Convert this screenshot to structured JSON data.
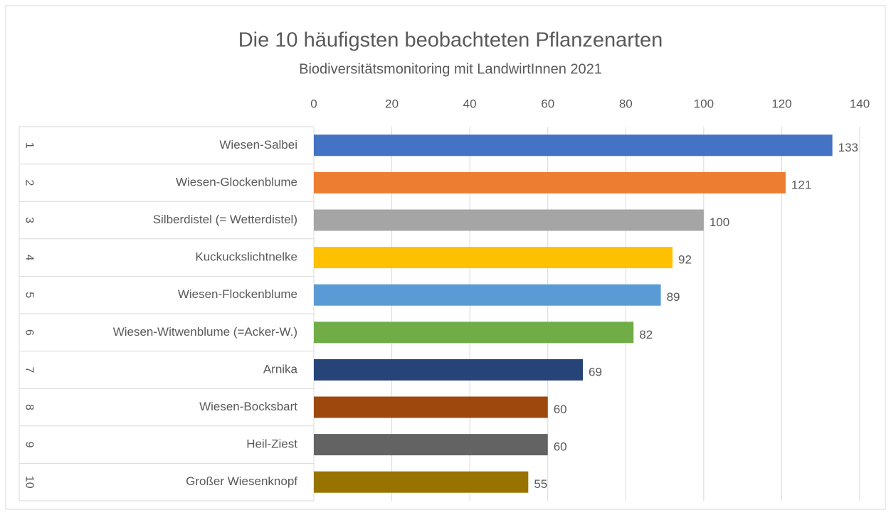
{
  "chart_data": {
    "type": "bar",
    "orientation": "horizontal",
    "title": "Die 10 häufigsten beobachteten Pflanzenarten",
    "subtitle": "Biodiversitätsmonitoring mit LandwirtInnen 2021",
    "ranks": [
      1,
      2,
      3,
      4,
      5,
      6,
      7,
      8,
      9,
      10
    ],
    "categories": [
      "Wiesen-Salbei",
      "Wiesen-Glockenblume",
      "Silberdistel (= Wetterdistel)",
      "Kuckuckslichtnelke",
      "Wiesen-Flockenblume",
      "Wiesen-Witwenblume (=Acker-W.)",
      "Arnika",
      "Wiesen-Bocksbart",
      "Heil-Ziest",
      "Großer Wiesenknopf"
    ],
    "values": [
      133,
      121,
      100,
      92,
      89,
      82,
      69,
      60,
      60,
      55
    ],
    "colors": [
      "#4472c4",
      "#ed7d31",
      "#a5a5a5",
      "#ffc000",
      "#5b9bd5",
      "#70ad47",
      "#264478",
      "#9e480e",
      "#636363",
      "#997300"
    ],
    "xlim": [
      0,
      140
    ],
    "xticks": [
      0,
      20,
      40,
      60,
      80,
      100,
      120,
      140
    ],
    "grid": true
  }
}
